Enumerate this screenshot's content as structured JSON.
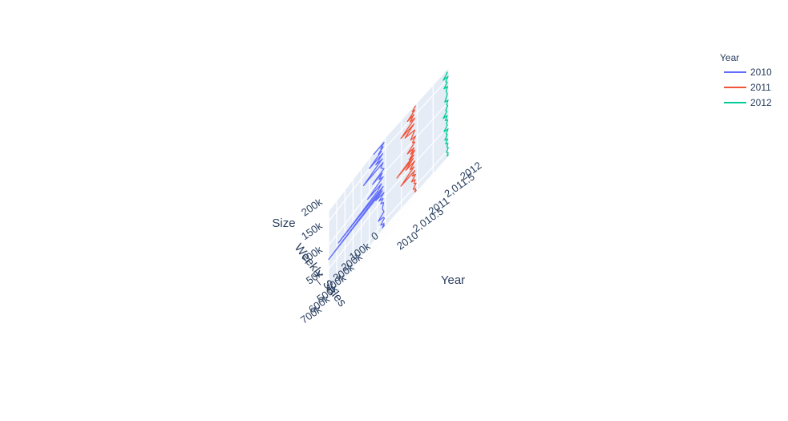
{
  "chart_data": {
    "type": "line3d",
    "legend": {
      "title": "Year",
      "placement": "top-right"
    },
    "axes": {
      "x": {
        "title": "Weekly_Sales",
        "ticks": [
          "0",
          "100k",
          "200k",
          "300k",
          "400k",
          "500k",
          "600k",
          "700k"
        ],
        "range": [
          0,
          700000
        ]
      },
      "y": {
        "title": "Year",
        "ticks": [
          "2010",
          "2,010.5",
          "2011",
          "2,011.5",
          "2012"
        ],
        "range": [
          2010,
          2012
        ]
      },
      "z": {
        "title": "Size",
        "ticks": [
          "50k",
          "100k",
          "150k",
          "200k"
        ],
        "range": [
          35000,
          220000
        ]
      }
    },
    "series": [
      {
        "name": "2010",
        "year": 2010,
        "color": "#636efa",
        "points": [
          [
            10000,
            40000
          ],
          [
            40000,
            40000
          ],
          [
            20000,
            45000
          ],
          [
            60000,
            50000
          ],
          [
            15000,
            55000
          ],
          [
            30000,
            60000
          ],
          [
            90000,
            65000
          ],
          [
            20000,
            70000
          ],
          [
            40000,
            80000
          ],
          [
            25000,
            90000
          ],
          [
            60000,
            95000
          ],
          [
            30000,
            100000
          ],
          [
            80000,
            105000
          ],
          [
            20000,
            110000
          ],
          [
            120000,
            115000
          ],
          [
            40000,
            118000
          ],
          [
            700000,
            120000
          ],
          [
            60000,
            122000
          ],
          [
            30000,
            125000
          ],
          [
            580000,
            128000
          ],
          [
            100000,
            130000
          ],
          [
            50000,
            135000
          ],
          [
            220000,
            140000
          ],
          [
            30000,
            145000
          ],
          [
            80000,
            150000
          ],
          [
            40000,
            155000
          ],
          [
            160000,
            158000
          ],
          [
            20000,
            160000
          ],
          [
            60000,
            170000
          ],
          [
            30000,
            175000
          ],
          [
            270000,
            180000
          ],
          [
            40000,
            185000
          ],
          [
            120000,
            190000
          ],
          [
            35000,
            195000
          ],
          [
            200000,
            200000
          ],
          [
            50000,
            203000
          ],
          [
            90000,
            205000
          ],
          [
            30000,
            208000
          ],
          [
            60000,
            210000
          ],
          [
            20000,
            215000
          ],
          [
            150000,
            218000
          ]
        ]
      },
      {
        "name": "2011",
        "year": 2011,
        "color": "#ef553b",
        "points": [
          [
            10000,
            40000
          ],
          [
            30000,
            40000
          ],
          [
            20000,
            45000
          ],
          [
            50000,
            50000
          ],
          [
            15000,
            55000
          ],
          [
            40000,
            60000
          ],
          [
            25000,
            65000
          ],
          [
            70000,
            70000
          ],
          [
            20000,
            75000
          ],
          [
            60000,
            80000
          ],
          [
            30000,
            85000
          ],
          [
            200000,
            90000
          ],
          [
            40000,
            95000
          ],
          [
            90000,
            100000
          ],
          [
            30000,
            105000
          ],
          [
            140000,
            110000
          ],
          [
            50000,
            115000
          ],
          [
            250000,
            118000
          ],
          [
            40000,
            120000
          ],
          [
            100000,
            123000
          ],
          [
            60000,
            125000
          ],
          [
            30000,
            128000
          ],
          [
            80000,
            130000
          ],
          [
            40000,
            135000
          ],
          [
            120000,
            140000
          ],
          [
            30000,
            145000
          ],
          [
            60000,
            150000
          ],
          [
            20000,
            155000
          ],
          [
            80000,
            160000
          ],
          [
            30000,
            170000
          ],
          [
            150000,
            180000
          ],
          [
            40000,
            185000
          ],
          [
            200000,
            190000
          ],
          [
            30000,
            195000
          ],
          [
            90000,
            200000
          ],
          [
            40000,
            205000
          ],
          [
            120000,
            208000
          ],
          [
            30000,
            212000
          ],
          [
            60000,
            215000
          ],
          [
            20000,
            219000
          ]
        ]
      },
      {
        "name": "2012",
        "year": 2012,
        "color": "#00cc96",
        "points": [
          [
            5000,
            40000
          ],
          [
            20000,
            40000
          ],
          [
            10000,
            45000
          ],
          [
            30000,
            50000
          ],
          [
            8000,
            55000
          ],
          [
            25000,
            60000
          ],
          [
            12000,
            65000
          ],
          [
            40000,
            70000
          ],
          [
            15000,
            75000
          ],
          [
            50000,
            80000
          ],
          [
            20000,
            85000
          ],
          [
            35000,
            90000
          ],
          [
            10000,
            95000
          ],
          [
            60000,
            100000
          ],
          [
            20000,
            105000
          ],
          [
            30000,
            110000
          ],
          [
            15000,
            115000
          ],
          [
            45000,
            120000
          ],
          [
            20000,
            125000
          ],
          [
            70000,
            130000
          ],
          [
            25000,
            135000
          ],
          [
            40000,
            140000
          ],
          [
            15000,
            145000
          ],
          [
            30000,
            150000
          ],
          [
            10000,
            155000
          ],
          [
            50000,
            160000
          ],
          [
            20000,
            170000
          ],
          [
            35000,
            180000
          ],
          [
            15000,
            185000
          ],
          [
            60000,
            190000
          ],
          [
            20000,
            195000
          ],
          [
            40000,
            200000
          ],
          [
            10000,
            205000
          ],
          [
            70000,
            210000
          ],
          [
            20000,
            215000
          ],
          [
            30000,
            219000
          ]
        ]
      }
    ]
  }
}
